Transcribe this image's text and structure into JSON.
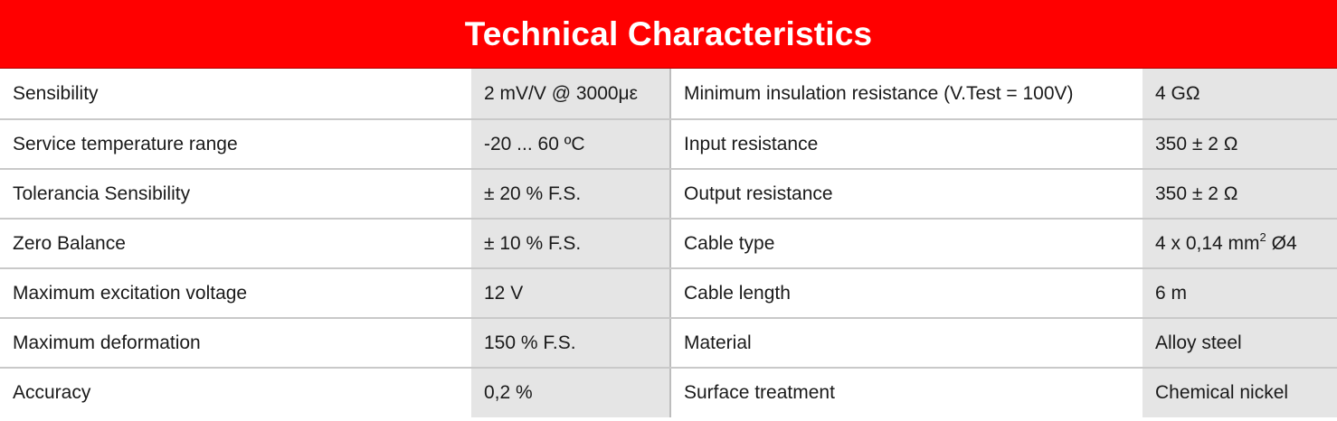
{
  "theme": {
    "header_bg": "#ff0000",
    "value_cell_bg": "#e5e5e5",
    "row_divider": "#c9c9c9"
  },
  "title": "Technical Characteristics",
  "rows": [
    {
      "label_a": "Sensibility",
      "value_a": "2 mV/V @ 3000με",
      "label_b": "Minimum insulation resistance (V.Test = 100V)",
      "value_b": "4 GΩ"
    },
    {
      "label_a": "Service temperature range",
      "value_a": "-20 ... 60 ºC",
      "label_b": "Input resistance",
      "value_b": "350 ± 2 Ω"
    },
    {
      "label_a": "Tolerancia Sensibility",
      "value_a": "± 20 % F.S.",
      "label_b": "Output resistance",
      "value_b": "350 ± 2 Ω"
    },
    {
      "label_a": "Zero Balance",
      "value_a": "± 10 % F.S.",
      "label_b": "Cable type",
      "value_b": "4 x 0,14 mm",
      "value_b_sup": "2",
      "value_b_suffix": " Ø4"
    },
    {
      "label_a": "Maximum excitation voltage",
      "value_a": "12 V",
      "label_b": "Cable length",
      "value_b": "6 m"
    },
    {
      "label_a": "Maximum deformation",
      "value_a": "150 % F.S.",
      "label_b": "Material",
      "value_b": "Alloy steel"
    },
    {
      "label_a": "Accuracy",
      "value_a": "0,2 %",
      "label_b": "Surface treatment",
      "value_b": "Chemical nickel"
    }
  ]
}
